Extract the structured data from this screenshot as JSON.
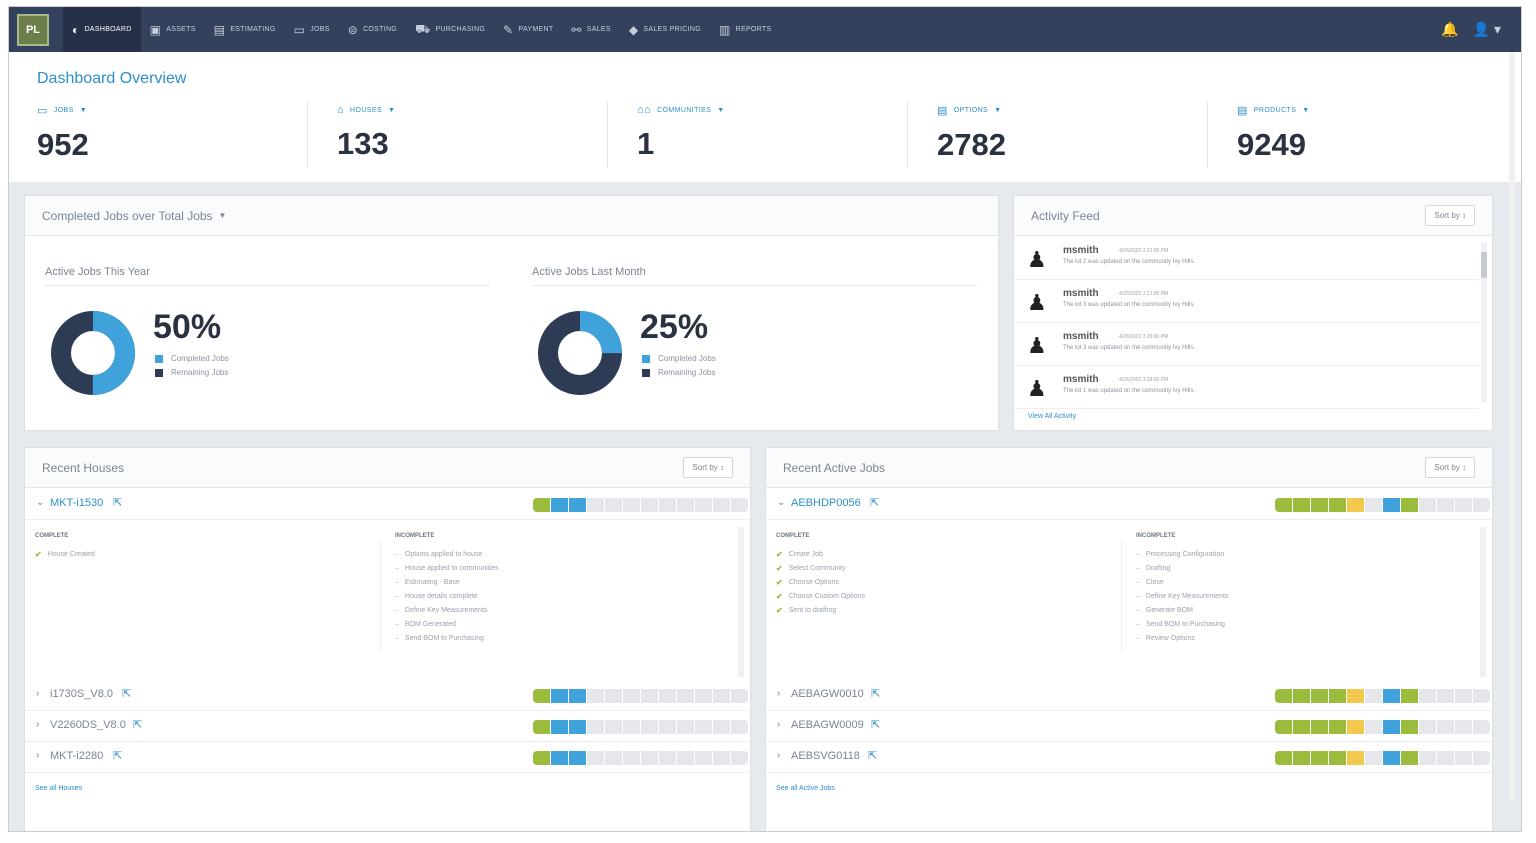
{
  "nav": {
    "logo": "PL",
    "items": [
      {
        "label": "Dashboard",
        "icon": "dashboard-icon",
        "glyph": "◐"
      },
      {
        "label": "Assets",
        "icon": "assets-icon",
        "glyph": "▣"
      },
      {
        "label": "Estimating",
        "icon": "estimating-icon",
        "glyph": "▤"
      },
      {
        "label": "Jobs",
        "icon": "jobs-icon",
        "glyph": "▭"
      },
      {
        "label": "Costing",
        "icon": "costing-icon",
        "glyph": "⊜"
      },
      {
        "label": "Purchasing",
        "icon": "cart-icon",
        "glyph": "⛟"
      },
      {
        "label": "Payment",
        "icon": "payment-icon",
        "glyph": "✎"
      },
      {
        "label": "Sales",
        "icon": "sales-icon",
        "glyph": "⚯"
      },
      {
        "label": "Sales Pricing",
        "icon": "tag-icon",
        "glyph": "◆"
      },
      {
        "label": "Reports",
        "icon": "reports-icon",
        "glyph": "▥"
      }
    ],
    "notification_glyph": "🔔",
    "user_glyph": "👤"
  },
  "overview": {
    "title": "Dashboard Overview",
    "stats": [
      {
        "label": "Jobs",
        "value": "952",
        "icon": "jobs-icon",
        "glyph": "▭"
      },
      {
        "label": "Houses",
        "value": "133",
        "icon": "house-icon",
        "glyph": "⌂"
      },
      {
        "label": "Communities",
        "value": "1",
        "icon": "communities-icon",
        "glyph": "⌂⌂"
      },
      {
        "label": "Options",
        "value": "2782",
        "icon": "options-icon",
        "glyph": "▤"
      },
      {
        "label": "Products",
        "value": "9249",
        "icon": "products-icon",
        "glyph": "▤"
      }
    ]
  },
  "completed_jobs": {
    "title": "Completed Jobs over Total Jobs",
    "charts": [
      {
        "subtitle": "Active Jobs This Year",
        "completed_fraction": 0.5,
        "pct_label": "50%"
      },
      {
        "subtitle": "Active Jobs Last Month",
        "completed_fraction": 0.25,
        "pct_label": "25%"
      }
    ],
    "legend": [
      "Completed Jobs",
      "Remaining Jobs"
    ],
    "colors": {
      "completed": "#3fa2db",
      "remaining": "#2e3b55"
    }
  },
  "activity": {
    "title": "Activity Feed",
    "sort_label": "Sort by ↕",
    "items": [
      {
        "user": "msmith",
        "time": "4/26/2020 3:22:00 PM",
        "message": "The lot 2 was updated on the community Ivy Hills."
      },
      {
        "user": "msmith",
        "time": "4/26/2020 3:22:00 PM",
        "message": "The lot 3 was updated on the community Ivy Hills."
      },
      {
        "user": "msmith",
        "time": "4/26/2020 3:26:00 PM",
        "message": "The lot 3 was updated on the community Ivy Hills."
      },
      {
        "user": "msmith",
        "time": "4/26/2020 3:28:00 PM",
        "message": "The lot 1 was updated on the community Ivy Hills."
      }
    ],
    "view_all": "View All Activity"
  },
  "recent_houses": {
    "title": "Recent Houses",
    "sort_label": "Sort by ↕",
    "expanded": {
      "name": "MKT-i1530",
      "complete_header": "Complete",
      "incomplete_header": "Incomplete",
      "complete": [
        "House Created"
      ],
      "incomplete": [
        "Options applied to house",
        "House applied to communities",
        "Estimating - Base",
        "House details complete",
        "Define Key Measurements",
        "BOM Generated",
        "Send BOM to Purchasing"
      ]
    },
    "rows": [
      "i1730S_V8.0",
      "V2260DS_V8.0",
      "MKT-i2280"
    ],
    "see_all": "See all Houses",
    "progress": [
      "#9bbb3c",
      "#3fa2db",
      "#3fa2db",
      "#e5e7ea",
      "#e5e7ea",
      "#e5e7ea",
      "#e5e7ea",
      "#e5e7ea",
      "#e5e7ea",
      "#e5e7ea",
      "#e5e7ea",
      "#e5e7ea"
    ]
  },
  "recent_jobs": {
    "title": "Recent Active Jobs",
    "sort_label": "Sort by ↕",
    "expanded": {
      "name": "AEBHDP0056",
      "complete_header": "Complete",
      "incomplete_header": "Incomplete",
      "complete": [
        "Create Job",
        "Select Community",
        "Choose Options",
        "Choose Custom Options",
        "Sent to drafting"
      ],
      "incomplete": [
        "Processing Configuration",
        "Drafting",
        "Close",
        "Define Key Measurements",
        "Generate BOM",
        "Send BOM to Purchasing",
        "Review Options"
      ]
    },
    "rows": [
      "AEBAGW0010",
      "AEBAGW0009",
      "AEBSVG0118"
    ],
    "see_all": "See all Active Jobs",
    "progress": [
      "#9bbb3c",
      "#9bbb3c",
      "#9bbb3c",
      "#9bbb3c",
      "#f2c94c",
      "#e5e7ea",
      "#3fa2db",
      "#9bbb3c",
      "#e5e7ea",
      "#e5e7ea",
      "#e5e7ea",
      "#e5e7ea"
    ]
  }
}
